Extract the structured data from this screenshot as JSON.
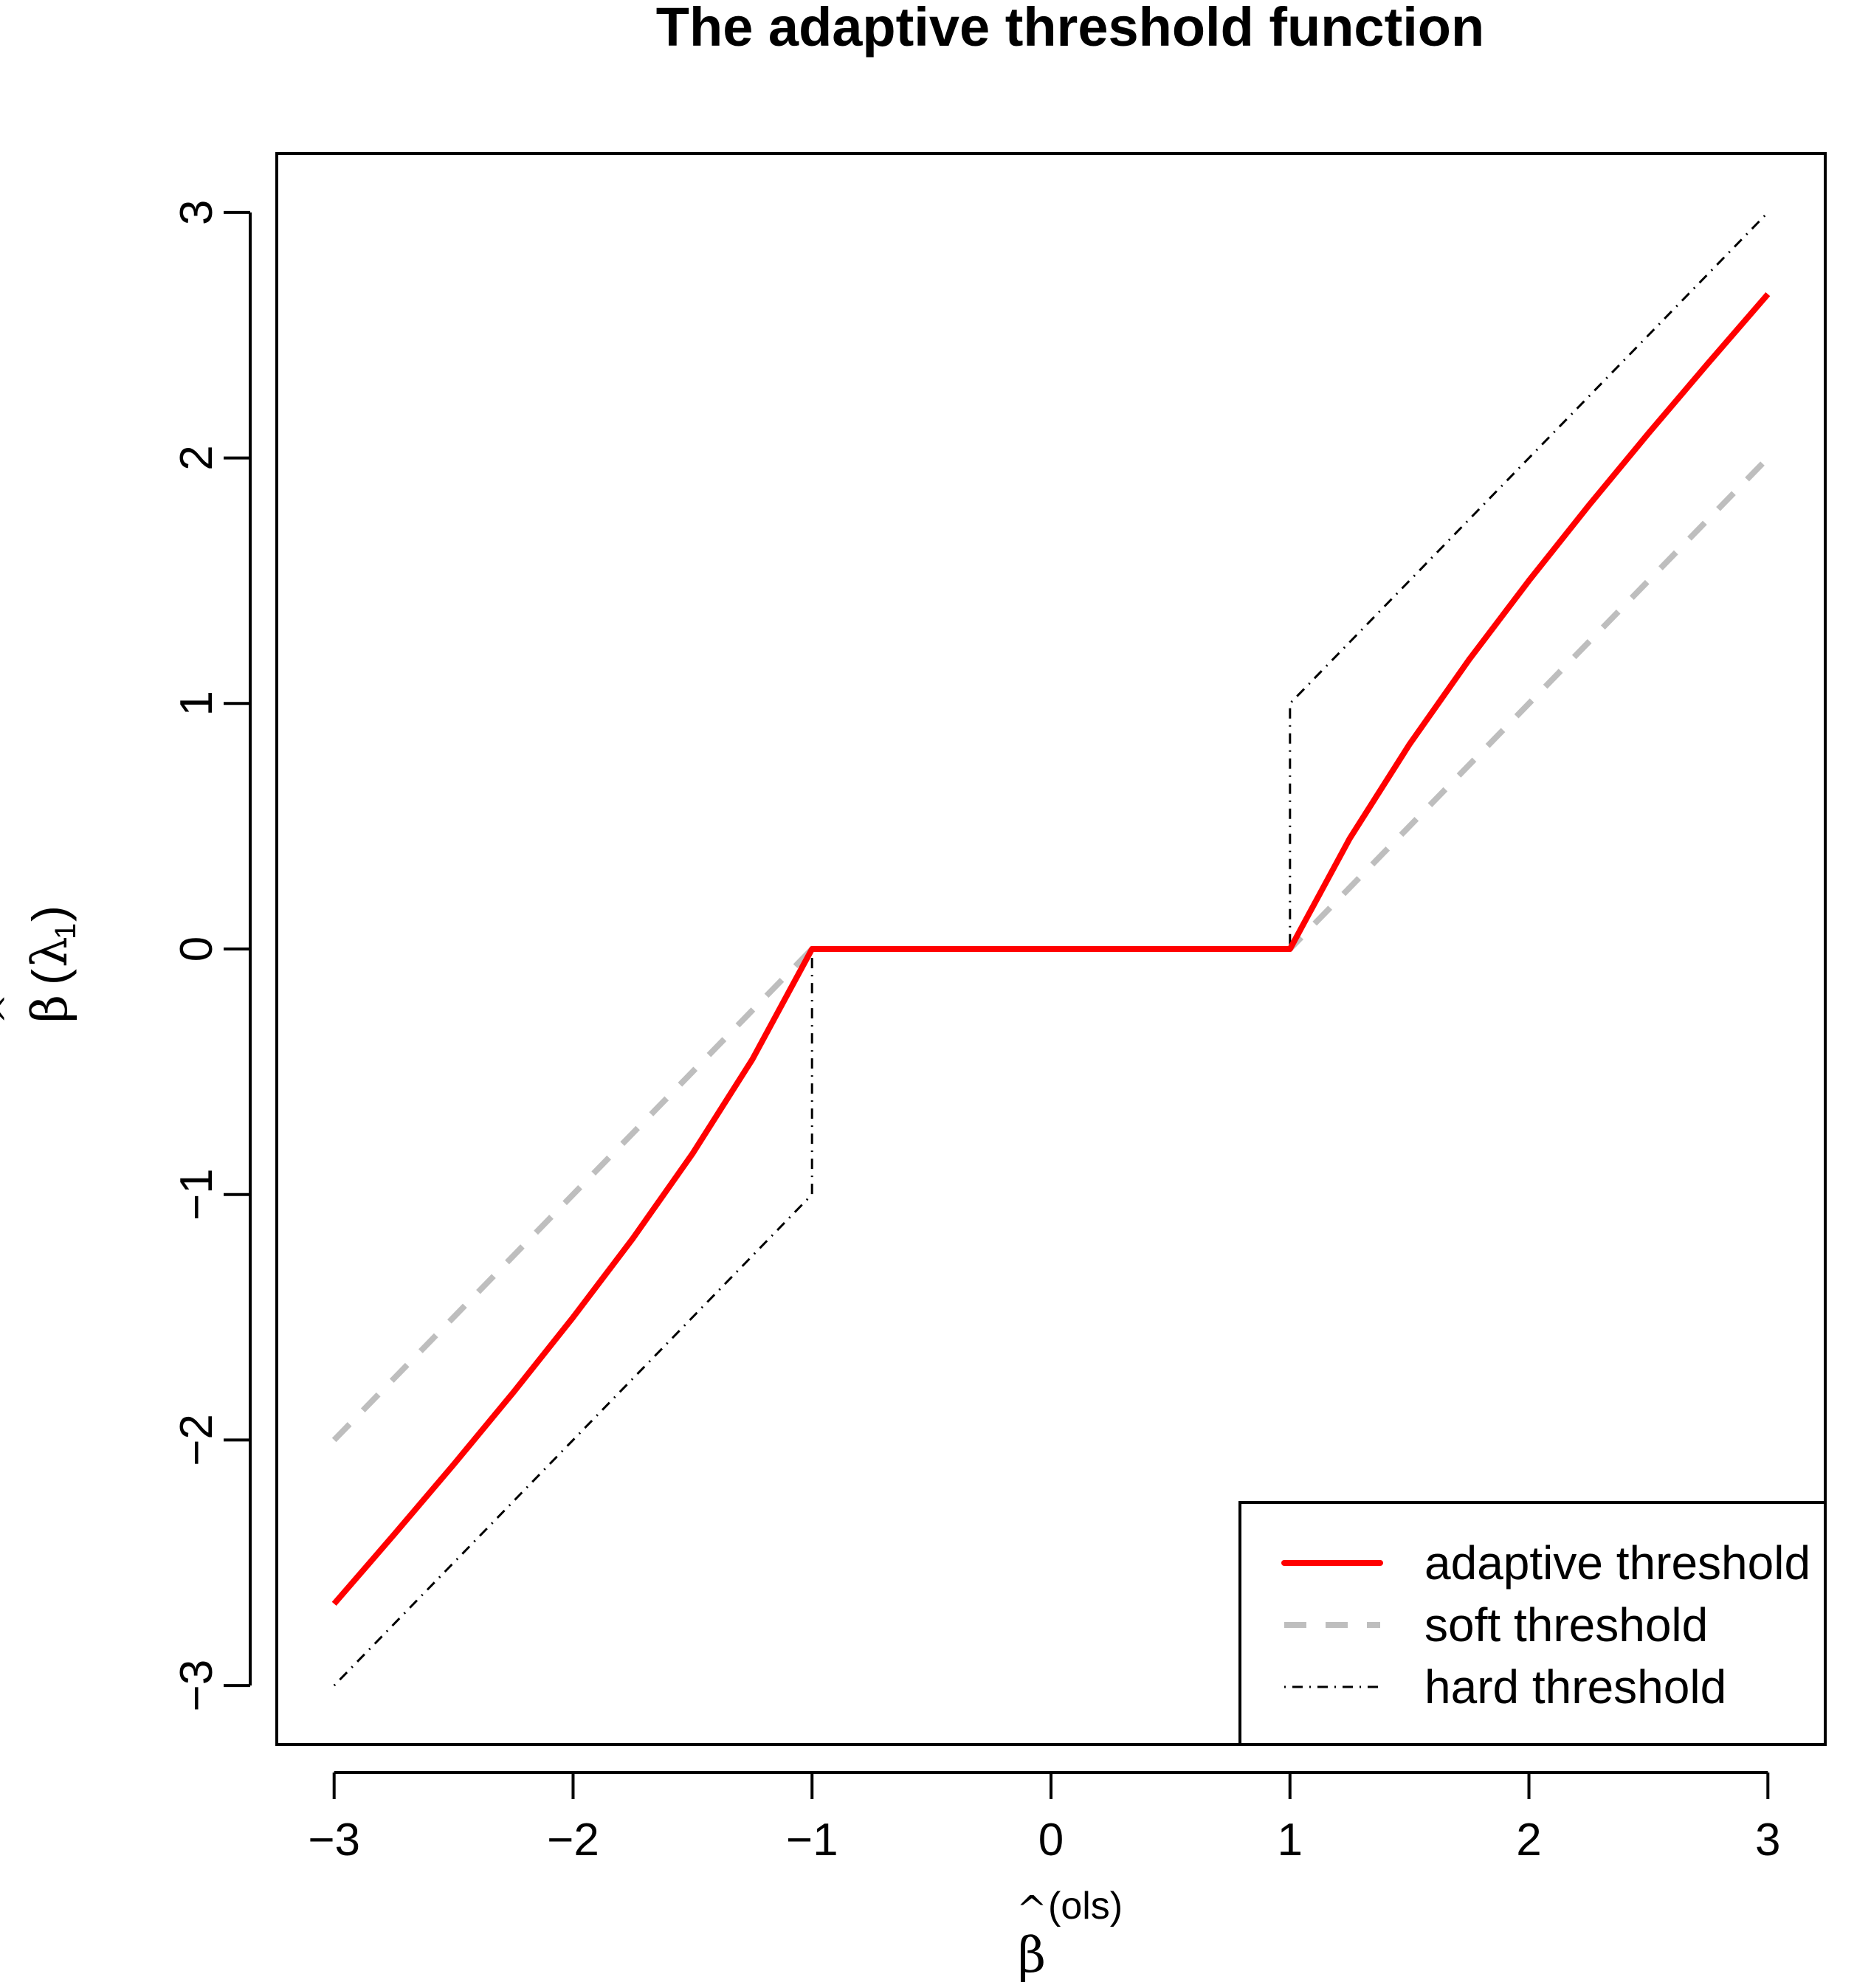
{
  "chart_data": {
    "type": "line",
    "title": "The adaptive threshold function",
    "xlabel": {
      "hat": "^",
      "base": "β",
      "superscript": "(ols)"
    },
    "ylabel": {
      "hat": "^",
      "base": "β",
      "open": "(",
      "lambda": "λ",
      "subscript": "1",
      "close": ")"
    },
    "xlim": [
      -3.24,
      3.24
    ],
    "ylim": [
      -3.24,
      3.24
    ],
    "x_ticks": [
      -3,
      -2,
      -1,
      0,
      1,
      2,
      3
    ],
    "x_tick_labels": [
      "−3",
      "−2",
      "−1",
      "0",
      "1",
      "2",
      "3"
    ],
    "y_ticks": [
      -3,
      -2,
      -1,
      0,
      1,
      2,
      3
    ],
    "y_tick_labels": [
      "−3",
      "−2",
      "−1",
      "0",
      "1",
      "2",
      "3"
    ],
    "grid": false,
    "legend_position": "bottom-right",
    "series": [
      {
        "name": "adaptive threshold",
        "color": "#ff0000",
        "style": "solid",
        "x": [
          -3,
          -2.75,
          -2.5,
          -2.25,
          -2,
          -1.75,
          -1.5,
          -1.25,
          -1,
          0,
          1,
          1.25,
          1.5,
          1.75,
          2,
          2.25,
          2.5,
          2.75,
          3
        ],
        "y": [
          -2.667,
          -2.386,
          -2.1,
          -1.806,
          -1.5,
          -1.179,
          -0.833,
          -0.45,
          0,
          0,
          0,
          0.45,
          0.833,
          1.179,
          1.5,
          1.806,
          2.1,
          2.386,
          2.667
        ]
      },
      {
        "name": "soft threshold",
        "color": "#bebebe",
        "style": "dashed",
        "x": [
          -3,
          -1,
          1,
          3
        ],
        "y": [
          -2,
          0,
          0,
          2
        ]
      },
      {
        "name": "hard threshold",
        "color": "#000000",
        "style": "dotdash",
        "x": [
          -3,
          -1,
          -1,
          1,
          1,
          3
        ],
        "y": [
          -3,
          -1,
          0,
          0,
          1,
          3
        ]
      }
    ]
  }
}
